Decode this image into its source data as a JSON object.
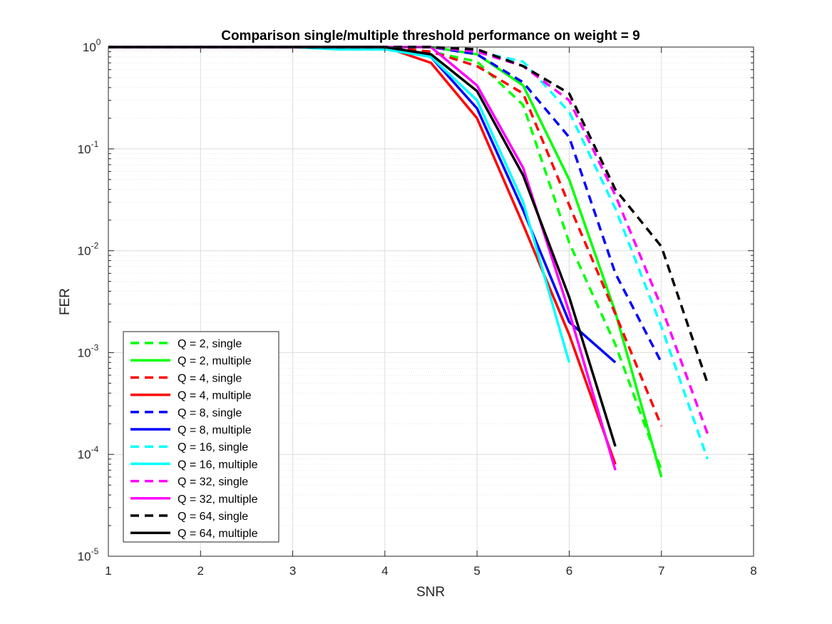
{
  "chart_data": {
    "type": "line",
    "title": "Comparison single/multiple threshold performance on weight = 9",
    "xlabel": "SNR",
    "ylabel": "FER",
    "xlim": [
      1,
      8
    ],
    "ylim": [
      1e-05,
      1
    ],
    "yscale": "log",
    "grid": true,
    "minor_grid": true,
    "legend_position": "bottom-left",
    "x_ticks": [
      "1",
      "2",
      "3",
      "4",
      "5",
      "6",
      "7",
      "8"
    ],
    "y_ticks": [
      {
        "base": "10",
        "exp": "0"
      },
      {
        "base": "10",
        "exp": "-1"
      },
      {
        "base": "10",
        "exp": "-2"
      },
      {
        "base": "10",
        "exp": "-3"
      },
      {
        "base": "10",
        "exp": "-4"
      },
      {
        "base": "10",
        "exp": "-5"
      }
    ],
    "series": [
      {
        "name": "Q = 2, single",
        "color": "#00ff00",
        "style": "dashed",
        "x": [
          1,
          1.5,
          2,
          2.5,
          3,
          3.5,
          4,
          4.5,
          5,
          5.5,
          6,
          6.5,
          7
        ],
        "y": [
          1,
          1,
          1,
          1,
          1,
          1,
          1,
          0.9,
          0.72,
          0.27,
          0.012,
          0.0012,
          7e-05
        ]
      },
      {
        "name": "Q = 2, multiple",
        "color": "#00ff00",
        "style": "solid",
        "x": [
          1,
          1.5,
          2,
          2.5,
          3,
          3.5,
          4,
          4.5,
          5,
          5.5,
          6,
          6.5,
          7
        ],
        "y": [
          1,
          1,
          1,
          1,
          1,
          1,
          1,
          1,
          0.85,
          0.42,
          0.05,
          0.0025,
          6e-05
        ]
      },
      {
        "name": "Q = 4, single",
        "color": "#ff0000",
        "style": "dashed",
        "x": [
          1,
          1.5,
          2,
          2.5,
          3,
          3.5,
          4,
          4.5,
          5,
          5.5,
          6,
          6.5,
          7
        ],
        "y": [
          1,
          1,
          1,
          1,
          1,
          1,
          1,
          0.9,
          0.65,
          0.35,
          0.028,
          0.0024,
          0.00019
        ]
      },
      {
        "name": "Q = 4, multiple",
        "color": "#ff0000",
        "style": "solid",
        "x": [
          1,
          1.5,
          2,
          2.5,
          3,
          3.5,
          4,
          4.5,
          5,
          5.5,
          6,
          6.5
        ],
        "y": [
          1,
          1,
          1,
          1,
          1,
          1,
          1,
          0.7,
          0.2,
          0.018,
          0.0015,
          8e-05
        ]
      },
      {
        "name": "Q = 8, single",
        "color": "#0000ff",
        "style": "dashed",
        "x": [
          1,
          1.5,
          2,
          2.5,
          3,
          3.5,
          4,
          4.5,
          5,
          5.5,
          6,
          6.5,
          7
        ],
        "y": [
          1,
          1,
          1,
          1,
          1,
          1,
          1,
          1,
          0.85,
          0.45,
          0.13,
          0.006,
          0.0008
        ]
      },
      {
        "name": "Q = 8, multiple",
        "color": "#0000ff",
        "style": "solid",
        "x": [
          1,
          1.5,
          2,
          2.5,
          3,
          3.5,
          4,
          4.5,
          5,
          5.5,
          6,
          6.5
        ],
        "y": [
          1,
          1,
          1,
          1,
          1,
          1,
          1,
          0.8,
          0.25,
          0.025,
          0.002,
          0.0008
        ]
      },
      {
        "name": "Q = 16, single",
        "color": "#00ffff",
        "style": "dashed",
        "x": [
          1,
          1.5,
          2,
          2.5,
          3,
          3.5,
          4,
          4.5,
          5,
          5.5,
          6,
          6.5,
          7,
          7.5
        ],
        "y": [
          1,
          1,
          1,
          1,
          1,
          1,
          1,
          1,
          0.9,
          0.72,
          0.23,
          0.026,
          0.0018,
          9e-05
        ]
      },
      {
        "name": "Q = 16, multiple",
        "color": "#00ffff",
        "style": "solid",
        "x": [
          1,
          1.5,
          2,
          2.5,
          3,
          3.5,
          4,
          4.5,
          5,
          5.5,
          6
        ],
        "y": [
          1,
          1,
          1,
          1,
          1,
          0.95,
          0.95,
          0.8,
          0.3,
          0.03,
          0.0008
        ]
      },
      {
        "name": "Q = 32, single",
        "color": "#ff00ff",
        "style": "dashed",
        "x": [
          1,
          1.5,
          2,
          2.5,
          3,
          3.5,
          4,
          4.5,
          5,
          5.5,
          6,
          6.5,
          7,
          7.5
        ],
        "y": [
          1,
          1,
          1,
          1,
          1,
          1,
          1,
          1,
          0.9,
          0.65,
          0.3,
          0.035,
          0.0028,
          0.00016
        ]
      },
      {
        "name": "Q = 32, multiple",
        "color": "#ff00ff",
        "style": "solid",
        "x": [
          1,
          1.5,
          2,
          2.5,
          3,
          3.5,
          4,
          4.5,
          5,
          5.5,
          6,
          6.5
        ],
        "y": [
          1,
          1,
          1,
          1,
          1,
          1,
          1,
          1,
          0.42,
          0.065,
          0.0025,
          7e-05
        ]
      },
      {
        "name": "Q = 64, single",
        "color": "#000000",
        "style": "dashed",
        "x": [
          1,
          1.5,
          2,
          2.5,
          3,
          3.5,
          4,
          4.5,
          5,
          5.5,
          6,
          6.5,
          7,
          7.5
        ],
        "y": [
          1,
          1,
          1,
          1,
          1,
          1,
          1,
          1,
          0.95,
          0.65,
          0.35,
          0.04,
          0.011,
          0.0005
        ]
      },
      {
        "name": "Q = 64, multiple",
        "color": "#000000",
        "style": "solid",
        "x": [
          1,
          1.5,
          2,
          2.5,
          3,
          3.5,
          4,
          4.5,
          5,
          5.5,
          6,
          6.5
        ],
        "y": [
          1,
          1,
          1,
          1,
          1,
          1,
          1,
          0.85,
          0.37,
          0.055,
          0.0035,
          0.00012
        ]
      }
    ]
  }
}
